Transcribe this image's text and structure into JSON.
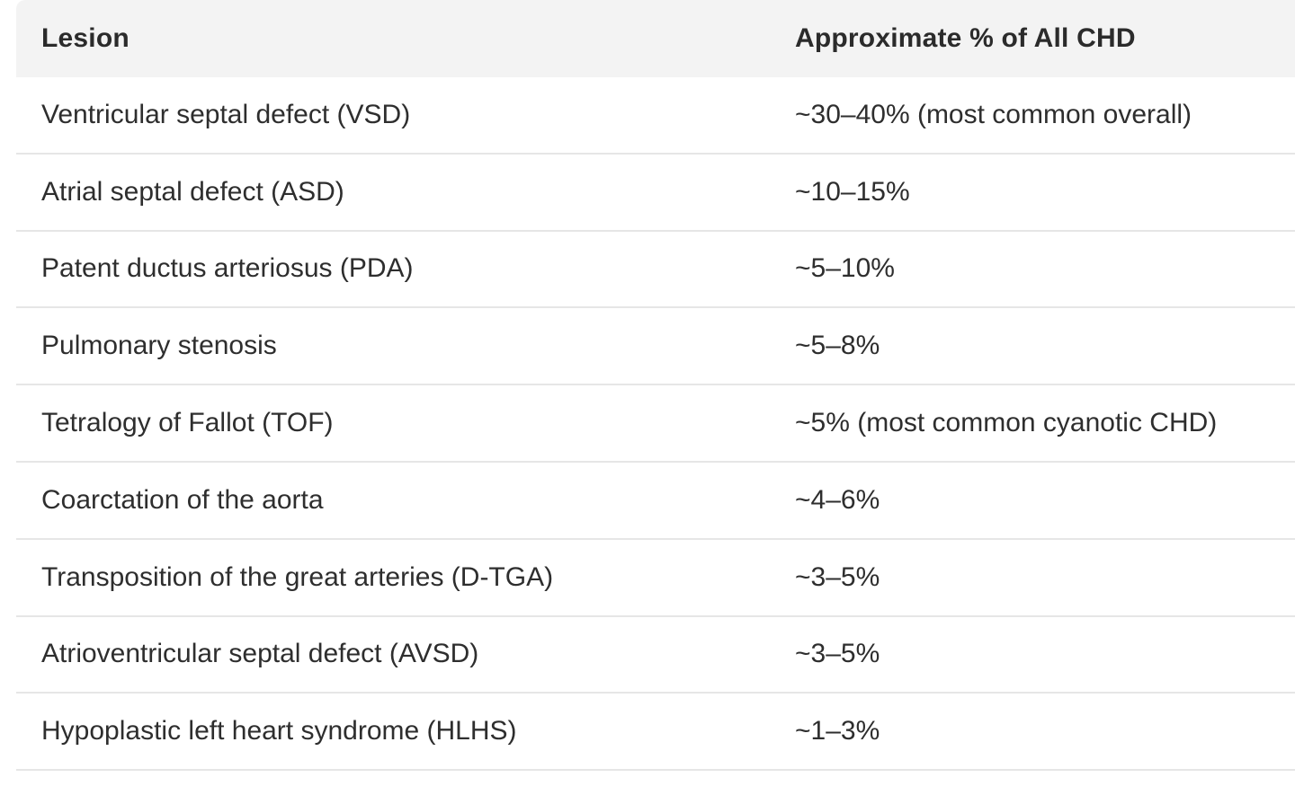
{
  "table": {
    "headers": {
      "lesion": "Lesion",
      "percent": "Approximate % of All CHD"
    },
    "rows": [
      {
        "lesion": "Ventricular septal defect (VSD)",
        "percent": "~30–40% (most common overall)"
      },
      {
        "lesion": "Atrial septal defect (ASD)",
        "percent": "~10–15%"
      },
      {
        "lesion": "Patent ductus arteriosus (PDA)",
        "percent": "~5–10%"
      },
      {
        "lesion": "Pulmonary stenosis",
        "percent": "~5–8%"
      },
      {
        "lesion": "Tetralogy of Fallot (TOF)",
        "percent": "~5% (most common cyanotic CHD)"
      },
      {
        "lesion": "Coarctation of the aorta",
        "percent": "~4–6%"
      },
      {
        "lesion": "Transposition of the great arteries (D-TGA)",
        "percent": "~3–5%"
      },
      {
        "lesion": "Atrioventricular septal defect (AVSD)",
        "percent": "~3–5%"
      },
      {
        "lesion": "Hypoplastic left heart syndrome (HLHS)",
        "percent": "~1–3%"
      }
    ]
  }
}
